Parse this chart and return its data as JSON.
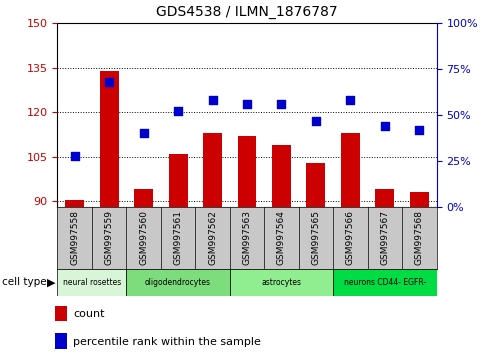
{
  "title": "GDS4538 / ILMN_1876787",
  "samples": [
    "GSM997558",
    "GSM997559",
    "GSM997560",
    "GSM997561",
    "GSM997562",
    "GSM997563",
    "GSM997564",
    "GSM997565",
    "GSM997566",
    "GSM997567",
    "GSM997568"
  ],
  "bar_values": [
    90.5,
    134,
    94,
    106,
    113,
    112,
    109,
    103,
    113,
    94,
    93
  ],
  "dot_values": [
    28,
    68,
    40,
    52,
    58,
    56,
    56,
    47,
    58,
    44,
    42
  ],
  "ylim_left": [
    88,
    150
  ],
  "ylim_right": [
    0,
    100
  ],
  "left_ticks": [
    90,
    105,
    120,
    135,
    150
  ],
  "right_ticks": [
    0,
    25,
    50,
    75,
    100
  ],
  "bar_color": "#cc0000",
  "dot_color": "#0000cc",
  "groups": [
    {
      "label": "neural rosettes",
      "start": 0,
      "end": 2,
      "color": "#d8f5d8"
    },
    {
      "label": "oligodendrocytes",
      "start": 2,
      "end": 5,
      "color": "#7ddd7d"
    },
    {
      "label": "astrocytes",
      "start": 5,
      "end": 8,
      "color": "#90ee90"
    },
    {
      "label": "neurons CD44- EGFR-",
      "start": 8,
      "end": 11,
      "color": "#00dd44"
    }
  ],
  "legend_count_label": "count",
  "legend_pct_label": "percentile rank within the sample",
  "cell_type_label": "cell type",
  "bar_color_hex": "#cc0000",
  "dot_color_hex": "#0000cc",
  "ylabel_left_color": "#cc0000",
  "ylabel_right_color": "#0000cc",
  "background_color": "#ffffff",
  "tick_label_bg": "#c8c8c8",
  "bar_bottom": 88
}
